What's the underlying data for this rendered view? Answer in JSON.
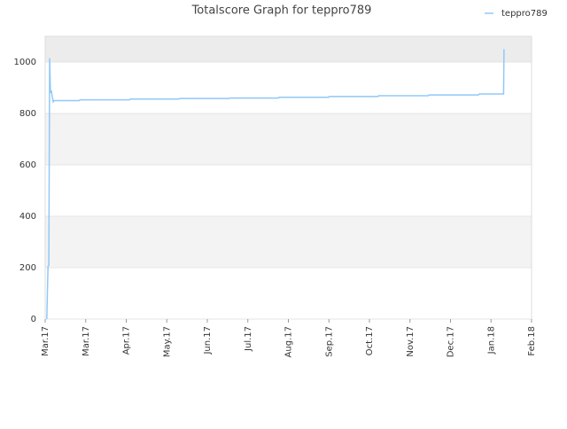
{
  "chart_data": {
    "type": "line",
    "title": "Totalscore Graph for teppro789",
    "x": [
      0.04,
      0.06,
      0.07,
      0.09,
      0.11,
      0.13,
      0.15,
      0.18,
      0.2,
      0.22,
      0.84,
      0.86,
      2.08,
      2.1,
      3.3,
      3.32,
      4.54,
      4.56,
      5.75,
      5.77,
      6.99,
      7.01,
      8.21,
      8.23,
      9.45,
      9.47,
      10.69,
      10.71,
      11.31,
      11.32
    ],
    "series": [
      {
        "name": "teppro789",
        "color": "#90c8f8",
        "values": [
          0,
          140,
          205,
          210,
          1015,
          880,
          890,
          860,
          845,
          850,
          850,
          853,
          853,
          856,
          856,
          858,
          858,
          860,
          860,
          863,
          863,
          866,
          866,
          869,
          869,
          872,
          872,
          876,
          876,
          1050
        ]
      }
    ],
    "xlim": [
      0,
      12
    ],
    "xticks": [
      {
        "value": 0,
        "label": "Mar.17"
      },
      {
        "value": 1,
        "label": "Mar.17"
      },
      {
        "value": 2,
        "label": "Apr.17"
      },
      {
        "value": 3,
        "label": "May.17"
      },
      {
        "value": 4,
        "label": "Jun.17"
      },
      {
        "value": 5,
        "label": "Jul.17"
      },
      {
        "value": 6,
        "label": "Aug.17"
      },
      {
        "value": 7,
        "label": "Sep.17"
      },
      {
        "value": 8,
        "label": "Oct.17"
      },
      {
        "value": 9,
        "label": "Nov.17"
      },
      {
        "value": 10,
        "label": "Dec.17"
      },
      {
        "value": 11,
        "label": "Jan.18"
      },
      {
        "value": 12,
        "label": "Feb.18"
      }
    ],
    "ylim": [
      0,
      1100
    ],
    "yticks": [
      0,
      200,
      400,
      600,
      800,
      1000
    ],
    "grid": true,
    "legend": "top-right"
  }
}
